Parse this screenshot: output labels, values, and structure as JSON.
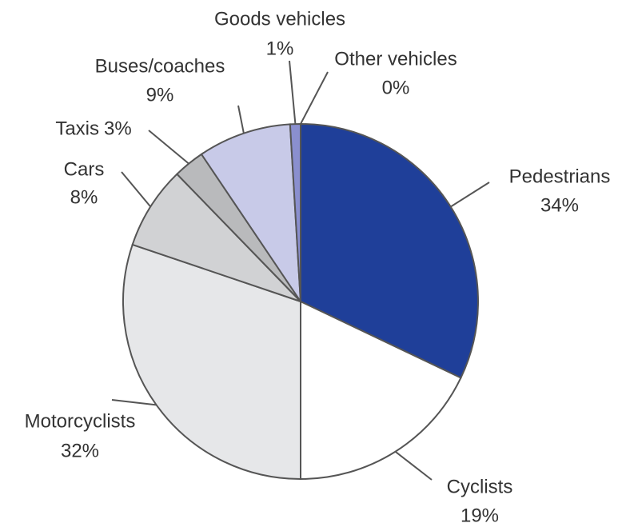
{
  "chart_data": {
    "type": "pie",
    "categories": [
      "Pedestrians",
      "Cyclists",
      "Motorcyclists",
      "Cars",
      "Taxis",
      "Buses/coaches",
      "Goods vehicles",
      "Other vehicles"
    ],
    "values": [
      34,
      19,
      32,
      8,
      3,
      9,
      1,
      0
    ],
    "value_labels": [
      "34%",
      "19%",
      "32%",
      "8%",
      "3%",
      "9%",
      "1%",
      "0%"
    ],
    "colors": [
      "#1f3f99",
      "#ffffff",
      "#e6e7e9",
      "#d1d2d4",
      "#b9babc",
      "#c8cae8",
      "#8a8fcf",
      "#5c63b8"
    ]
  }
}
